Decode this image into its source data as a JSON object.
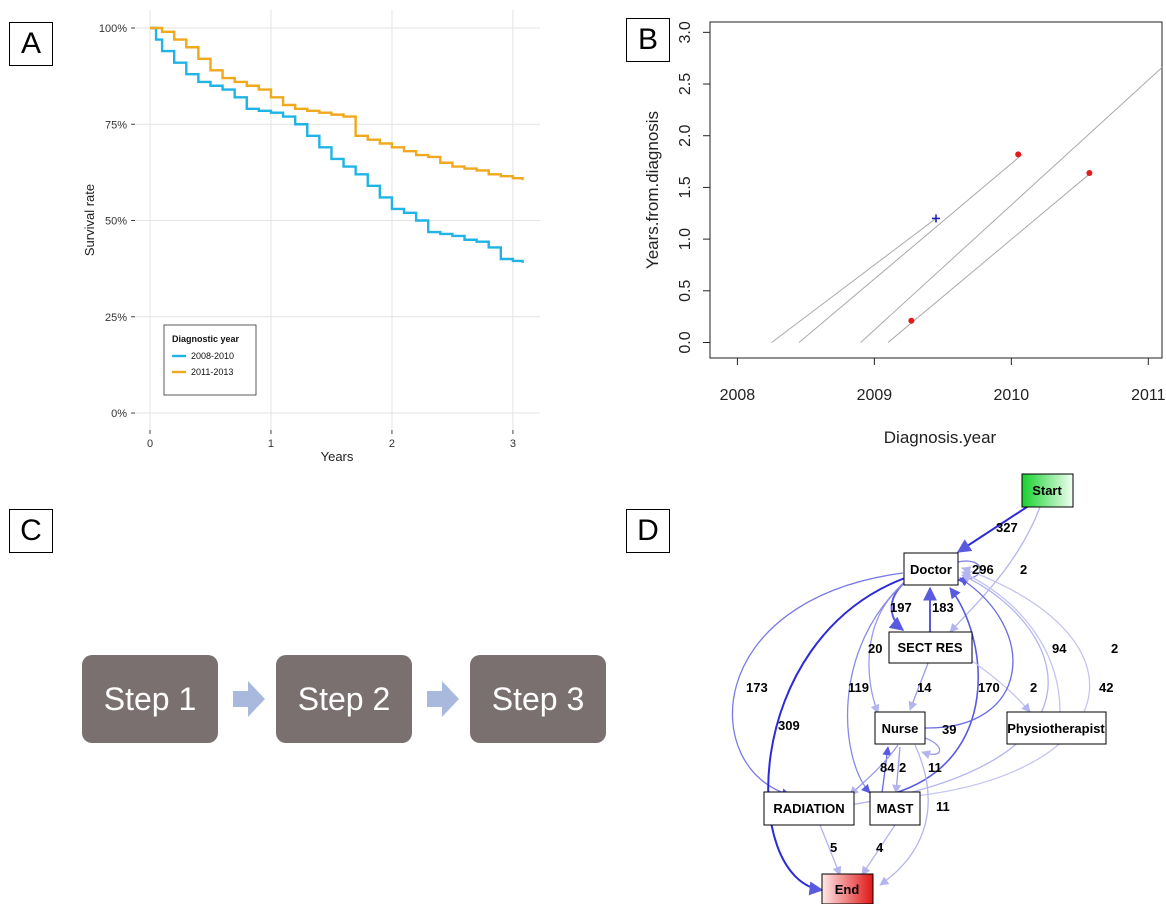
{
  "panels": {
    "a": "A",
    "b": "B",
    "c": "C",
    "d": "D"
  },
  "chart_data": [
    {
      "type": "line",
      "panel": "A",
      "xlabel": "Years",
      "ylabel": "Survival rate",
      "xlim": [
        0,
        3.1
      ],
      "ylim": [
        0,
        100
      ],
      "x_ticks": [
        {
          "v": 0,
          "label": "0"
        },
        {
          "v": 1,
          "label": "1"
        },
        {
          "v": 2,
          "label": "2"
        },
        {
          "v": 3,
          "label": "3"
        }
      ],
      "y_ticks": [
        {
          "v": 0,
          "label": "0%"
        },
        {
          "v": 25,
          "label": "25%"
        },
        {
          "v": 50,
          "label": "50%"
        },
        {
          "v": 75,
          "label": "75%"
        },
        {
          "v": 100,
          "label": "100%"
        }
      ],
      "grid": true,
      "legend": {
        "title": "Diagnostic year",
        "placement": "bottom-left"
      },
      "series": [
        {
          "name": "2008-2010",
          "color": "#1fb3e6",
          "x": [
            0,
            0.05,
            0.1,
            0.2,
            0.3,
            0.4,
            0.5,
            0.6,
            0.7,
            0.8,
            0.9,
            1.0,
            1.1,
            1.2,
            1.3,
            1.4,
            1.5,
            1.6,
            1.7,
            1.8,
            1.9,
            2.0,
            2.1,
            2.2,
            2.3,
            2.4,
            2.5,
            2.6,
            2.7,
            2.8,
            2.9,
            3.0,
            3.08
          ],
          "y": [
            100,
            97,
            94,
            91,
            88,
            86,
            85,
            84,
            82,
            79,
            78.5,
            78,
            77,
            75,
            72,
            69,
            66,
            64,
            62,
            59,
            56,
            53,
            52,
            50,
            47,
            46.5,
            46,
            45,
            44.5,
            43,
            40,
            39.5,
            39
          ]
        },
        {
          "name": "2011-2013",
          "color": "#f0a81c",
          "x": [
            0,
            0.1,
            0.2,
            0.3,
            0.4,
            0.5,
            0.6,
            0.7,
            0.8,
            0.9,
            1.0,
            1.1,
            1.2,
            1.3,
            1.4,
            1.5,
            1.6,
            1.7,
            1.8,
            1.9,
            2.0,
            2.1,
            2.2,
            2.3,
            2.4,
            2.5,
            2.6,
            2.7,
            2.8,
            2.9,
            3.0,
            3.08
          ],
          "y": [
            100,
            99,
            97,
            95,
            92,
            89,
            87,
            86,
            85,
            84,
            82,
            80,
            79,
            78.5,
            78,
            77.5,
            77,
            72,
            71,
            70,
            69,
            68,
            67,
            66.5,
            65,
            64,
            63.5,
            63,
            62,
            61.5,
            61,
            60.5
          ]
        }
      ]
    },
    {
      "type": "scatter",
      "panel": "B",
      "xlabel": "Diagnosis.year",
      "ylabel": "Years.from.diagnosis",
      "xlim": [
        2007.8,
        2011.1
      ],
      "ylim": [
        -0.15,
        3.1
      ],
      "x_ticks": [
        {
          "v": 2008,
          "label": "2008"
        },
        {
          "v": 2009,
          "label": "2009"
        },
        {
          "v": 2010,
          "label": "2010"
        },
        {
          "v": 2011,
          "label": "2011"
        }
      ],
      "y_ticks": [
        {
          "v": 0.0,
          "label": "0.0"
        },
        {
          "v": 0.5,
          "label": "0.5"
        },
        {
          "v": 1.0,
          "label": "1.0"
        },
        {
          "v": 1.5,
          "label": "1.5"
        },
        {
          "v": 2.0,
          "label": "2.0"
        },
        {
          "v": 2.5,
          "label": "2.5"
        },
        {
          "v": 3.0,
          "label": "3.0"
        }
      ],
      "grid": false,
      "lines": [
        {
          "x": [
            2008.25,
            2009.45
          ],
          "y": [
            0.0,
            1.2
          ]
        },
        {
          "x": [
            2008.45,
            2010.08
          ],
          "y": [
            0.0,
            1.82
          ]
        },
        {
          "x": [
            2008.9,
            2011.1
          ],
          "y": [
            0.0,
            2.66
          ]
        },
        {
          "x": [
            2009.1,
            2010.58
          ],
          "y": [
            0.0,
            1.64
          ]
        }
      ],
      "points": [
        {
          "x": 2009.45,
          "y": 1.2,
          "marker": "plus",
          "color": "#2222bb"
        },
        {
          "x": 2010.05,
          "y": 1.82,
          "marker": "dot",
          "color": "#e21a1a"
        },
        {
          "x": 2010.57,
          "y": 1.64,
          "marker": "dot",
          "color": "#e21a1a"
        },
        {
          "x": 2009.27,
          "y": 0.21,
          "marker": "dot",
          "color": "#e21a1a"
        }
      ]
    }
  ],
  "steps": [
    {
      "label": "Step 1"
    },
    {
      "label": "Step 2"
    },
    {
      "label": "Step 3"
    }
  ],
  "process_map": {
    "nodes": [
      {
        "id": "start",
        "label": "Start",
        "fill": "green-gradient"
      },
      {
        "id": "doctor",
        "label": "Doctor"
      },
      {
        "id": "sect",
        "label": "SECT RES"
      },
      {
        "id": "nurse",
        "label": "Nurse"
      },
      {
        "id": "physio",
        "label": "Physiotherapist"
      },
      {
        "id": "radiation",
        "label": "RADIATION"
      },
      {
        "id": "mast",
        "label": "MAST"
      },
      {
        "id": "end",
        "label": "End",
        "fill": "red-gradient"
      }
    ],
    "edge_labels": [
      "327",
      "2",
      "296",
      "197",
      "183",
      "20",
      "94",
      "2",
      "173",
      "309",
      "119",
      "14",
      "170",
      "2",
      "42",
      "39",
      "84",
      "2",
      "11",
      "11",
      "5",
      "4"
    ]
  }
}
